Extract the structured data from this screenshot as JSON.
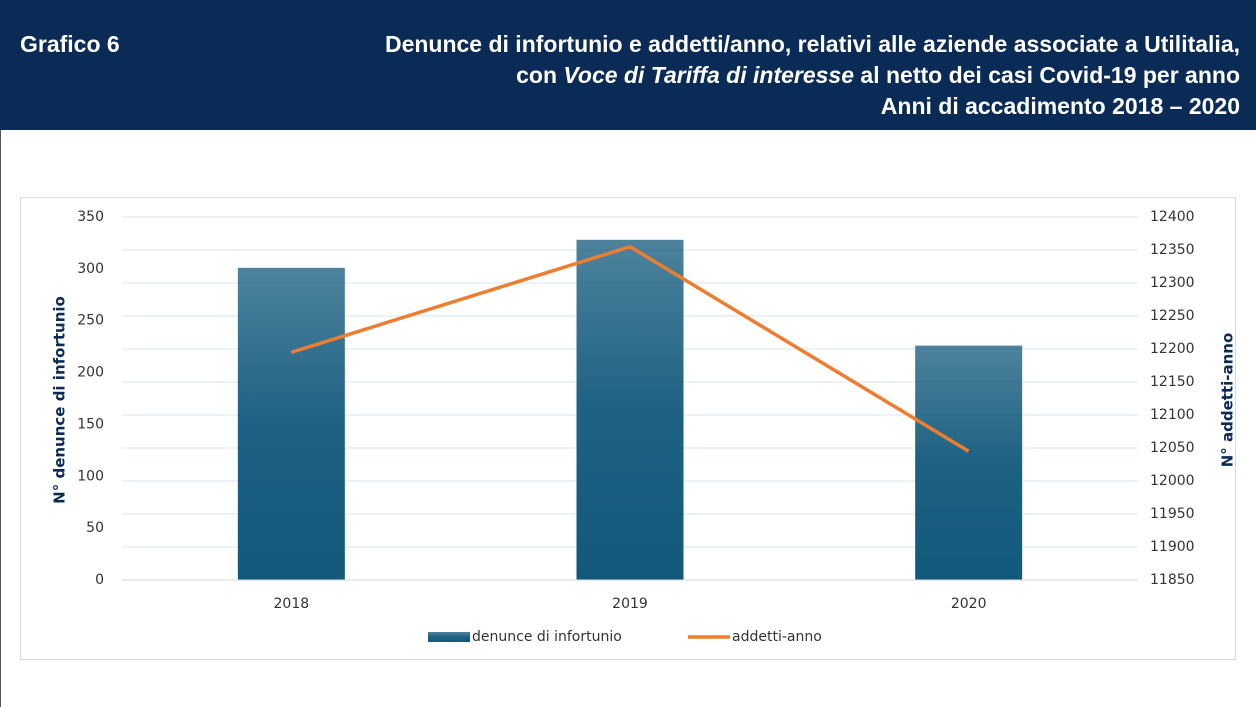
{
  "header": {
    "label": "Grafico 6",
    "title_line1": "Denunce di infortunio e addetti/anno, relativi alle aziende associate a Utilitalia,",
    "title_line2": [
      "con ",
      "Voce di Tariffa di interesse",
      " al netto dei casi Covid-19 per anno"
    ],
    "title_line3": "Anni di accadimento 2018 – 2020"
  },
  "chart_data": {
    "type": "bar",
    "categories": [
      "2018",
      "2019",
      "2020"
    ],
    "series": [
      {
        "name": "denunce di infortunio",
        "type": "bar",
        "color": "#12597c",
        "values": [
          301,
          328,
          226
        ]
      },
      {
        "name": "addetti-anno",
        "type": "line",
        "axis": "y2",
        "color": "#ed7d31",
        "values": [
          12195,
          12355,
          12045
        ]
      }
    ],
    "ylabel": "N° denunce di infortunio",
    "y2label": "N° addetti-anno",
    "ylim": [
      0,
      350
    ],
    "yticks": [
      0,
      50,
      100,
      150,
      200,
      250,
      300,
      350
    ],
    "y2lim": [
      11850,
      12400
    ],
    "y2ticks": [
      11850,
      11900,
      11950,
      12000,
      12050,
      12100,
      12150,
      12200,
      12250,
      12300,
      12350,
      12400
    ],
    "grid": true,
    "legend": "bottom"
  }
}
